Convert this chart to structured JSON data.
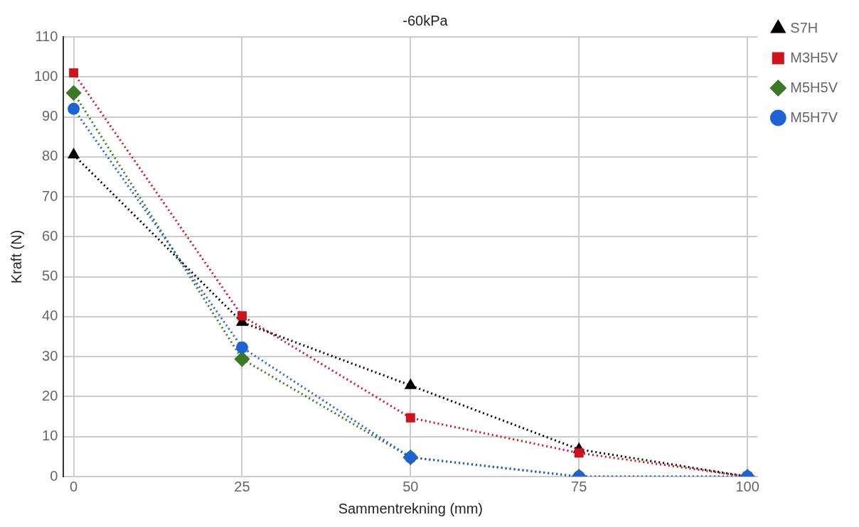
{
  "chart_data": {
    "type": "line",
    "title": "-60kPa",
    "xlabel": "Sammentrekning (mm)",
    "ylabel": "Kraft (N)",
    "x": [
      0,
      25,
      50,
      75,
      100
    ],
    "series": [
      {
        "name": "S7H",
        "color": "#000000",
        "marker": "triangle",
        "values": [
          80.5,
          38.6,
          22.8,
          6.8,
          0
        ]
      },
      {
        "name": "M3H5V",
        "color": "#d0131b",
        "marker": "square",
        "values": [
          101,
          40.2,
          14.7,
          5.9,
          0
        ]
      },
      {
        "name": "M5H5V",
        "color": "#3a7a22",
        "marker": "diamond",
        "values": [
          96,
          29.4,
          4.8,
          0,
          0
        ]
      },
      {
        "name": "M5H7V",
        "color": "#1e63d6",
        "marker": "circle",
        "values": [
          92,
          32.3,
          4.8,
          0,
          0
        ]
      }
    ],
    "xlim": [
      -1.5,
      101.5
    ],
    "xticks": [
      0,
      25,
      50,
      75,
      100
    ],
    "ylim": [
      0,
      110
    ],
    "yticks": [
      0,
      10,
      20,
      30,
      40,
      50,
      60,
      70,
      80,
      90,
      100,
      110
    ],
    "grid": true,
    "legend": "right",
    "line_style": "dotted"
  }
}
